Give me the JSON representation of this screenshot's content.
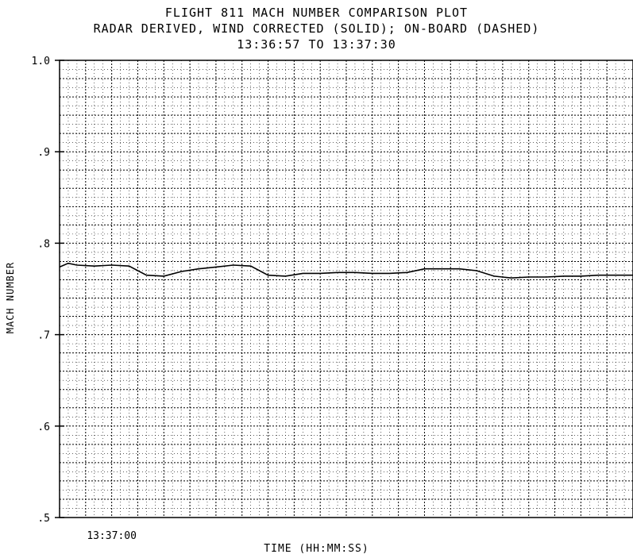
{
  "chart_data": {
    "type": "line",
    "title": "FLIGHT 811 MACH NUMBER COMPARISON PLOT",
    "subtitle": "RADAR DERIVED, WIND CORRECTED (SOLID); ON-BOARD (DASHED)",
    "time_range": "13:36:57 TO 13:37:30",
    "xlabel": "TIME (HH:MM:SS)",
    "ylabel": "MACH NUMBER",
    "ylim": [
      0.5,
      1.0
    ],
    "y_ticks": [
      {
        "value": 0.5,
        "label": ".5"
      },
      {
        "value": 0.6,
        "label": ".6"
      },
      {
        "value": 0.7,
        "label": ".7"
      },
      {
        "value": 0.8,
        "label": ".8"
      },
      {
        "value": 0.9,
        "label": ".9"
      },
      {
        "value": 1.0,
        "label": "1.0"
      }
    ],
    "x_tick_label": "13:37:00",
    "grid": true,
    "series": [
      {
        "style": "solid",
        "points": [
          [
            0.0,
            0.774
          ],
          [
            0.5,
            0.778
          ],
          [
            1.0,
            0.776
          ],
          [
            2.0,
            0.775
          ],
          [
            3.0,
            0.776
          ],
          [
            4.0,
            0.775
          ],
          [
            5.0,
            0.765
          ],
          [
            6.0,
            0.764
          ],
          [
            7.0,
            0.769
          ],
          [
            8.0,
            0.772
          ],
          [
            9.0,
            0.774
          ],
          [
            10.0,
            0.776
          ],
          [
            11.0,
            0.775
          ],
          [
            12.0,
            0.765
          ],
          [
            13.0,
            0.764
          ],
          [
            14.0,
            0.767
          ],
          [
            15.0,
            0.767
          ],
          [
            16.0,
            0.768
          ],
          [
            17.0,
            0.768
          ],
          [
            18.0,
            0.767
          ],
          [
            19.0,
            0.767
          ],
          [
            20.0,
            0.768
          ],
          [
            21.0,
            0.772
          ],
          [
            22.0,
            0.772
          ],
          [
            23.0,
            0.772
          ],
          [
            24.0,
            0.77
          ],
          [
            25.0,
            0.764
          ],
          [
            26.0,
            0.762
          ],
          [
            27.0,
            0.763
          ],
          [
            28.0,
            0.763
          ],
          [
            29.0,
            0.764
          ],
          [
            30.0,
            0.764
          ],
          [
            31.0,
            0.765
          ],
          [
            32.0,
            0.765
          ],
          [
            33.0,
            0.765
          ]
        ]
      }
    ]
  }
}
